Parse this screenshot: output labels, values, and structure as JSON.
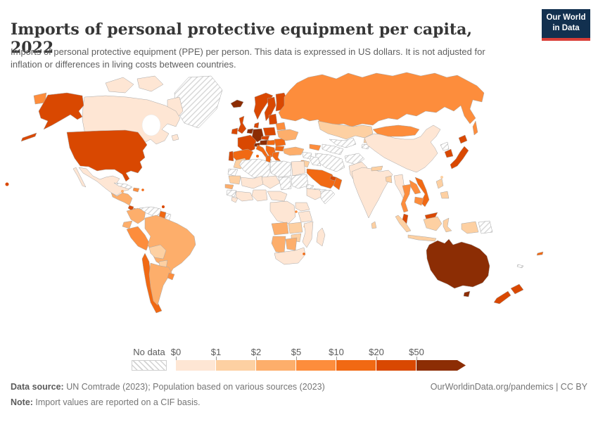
{
  "chart_data": {
    "type": "choropleth",
    "title": "Imports of personal protective equipment per capita, 2022",
    "subtitle": "Imports of personal protective equipment (PPE) per person. This data is expressed in US dollars. It is not adjusted for inflation or differences in living costs between countries.",
    "unit": "US dollars per person",
    "legend": {
      "no_data_label": "No data",
      "thresholds": [
        "$0",
        "$1",
        "$2",
        "$5",
        "$10",
        "$20",
        "$50"
      ],
      "ranges": [
        "$0-$1",
        "$1-$2",
        "$2-$5",
        "$5-$10",
        "$10-$20",
        "$20-$50",
        "$50+"
      ],
      "colors": [
        "#fee6d4",
        "#fdd0a2",
        "#fdae6b",
        "#fd8d3c",
        "#f16913",
        "#d94801",
        "#8c2d04"
      ],
      "no_data_pattern": "diagonal-hatch"
    },
    "countries": {
      "United States": "$20-$50",
      "Canada": "$0-$1",
      "Mexico": "$0-$1",
      "Guatemala": "$2-$5",
      "Honduras": "$2-$5",
      "Nicaragua": "$2-$5",
      "Costa Rica": "$20-$50",
      "Panama": "$5-$10",
      "Cuba": "No data",
      "Jamaica": "$2-$5",
      "Dominican Republic": "$5-$10",
      "Puerto Rico": "$10-$20",
      "Trinidad and Tobago": "$20-$50",
      "Colombia": "$2-$5",
      "Venezuela": "No data",
      "Guyana": "$10-$20",
      "Suriname": "No data",
      "Ecuador": "$2-$5",
      "Peru": "$5-$10",
      "Brazil": "$2-$5",
      "Bolivia": "$1-$2",
      "Paraguay": "$1-$2",
      "Chile": "$10-$20",
      "Argentina": "$2-$5",
      "Uruguay": "$5-$10",
      "Greenland": "No data",
      "Iceland": "$50+",
      "Ireland": "$20-$50",
      "United Kingdom": "$20-$50",
      "Norway": "$20-$50",
      "Sweden": "$20-$50",
      "Finland": "$20-$50",
      "Denmark": "$20-$50",
      "Netherlands": "$50+",
      "Germany": "$50+",
      "France": "$20-$50",
      "Switzerland": "$50+",
      "Austria": "$50+",
      "Czechia": "$20-$50",
      "Poland": "$20-$50",
      "Baltic states": "$20-$50",
      "Belarus": "$5-$10",
      "Ukraine": "$2-$5",
      "Hungary": "$10-$20",
      "Romania": "$10-$20",
      "Bulgaria": "$10-$20",
      "Balkans": "$10-$20",
      "Greece": "$10-$20",
      "Italy": "$10-$20",
      "Spain": "$10-$20",
      "Portugal": "$20-$50",
      "Turkey": "$2-$5",
      "Russia": "$5-$10",
      "Kazakhstan": "$1-$2",
      "Kyrgyzstan": "$1-$2",
      "Tajikistan": "No data",
      "Uzbekistan": "No data",
      "Turkmenistan": "No data",
      "Georgia": "$5-$10",
      "Mongolia": "$5-$10",
      "China": "$0-$1",
      "North Korea": "No data",
      "South Korea": "$20-$50",
      "Japan": "$20-$50",
      "Taiwan": "$1-$2",
      "India": "$0-$1",
      "Nepal": "$1-$2",
      "Bangladesh": "$1-$2",
      "Sri Lanka": "$1-$2",
      "Pakistan": "$0-$1",
      "Afghanistan": "No data",
      "Iran": "No data",
      "Iraq": "No data",
      "Syria": "No data",
      "Israel": "$5-$10",
      "Jordan": "$1-$2",
      "Saudi Arabia": "$10-$20",
      "Yemen": "No data",
      "Oman": "$10-$20",
      "United Arab Emirates": "$20-$50",
      "Myanmar": "$0-$1",
      "Thailand": "$5-$10",
      "Laos": "$5-$10",
      "Cambodia": "$5-$10",
      "Vietnam": "$10-$20",
      "Malaysia": "$20-$50",
      "Indonesia": "$1-$2",
      "Philippines": "$1-$2",
      "Papua New Guinea": "No data",
      "Australia": "$50+",
      "New Zealand": "$20-$50",
      "Fiji": "$10-$20",
      "New Caledonia": "No data",
      "Morocco": "$1-$2",
      "Western Sahara": "No data",
      "Mauritania": "$1-$2",
      "Senegal": "$2-$5",
      "Guinea": "No data",
      "Sierra Leone": "$0-$1",
      "Ivory Coast": "$0-$1",
      "Mali": "$0-$1",
      "Niger": "$0-$1",
      "Nigeria": "$0-$1",
      "Algeria": "No data",
      "Tunisia": "$10-$20",
      "Libya": "No data",
      "Egypt": "$0-$1",
      "Chad": "No data",
      "Sudan": "No data",
      "Eritrea": "No data",
      "Ethiopia": "$0-$1",
      "Somalia": "No data",
      "Cameroon": "$0-$1",
      "Democratic Republic of Congo": "$0-$1",
      "Kenya": "$0-$1",
      "Rwanda": "$5-$10",
      "Tanzania": "$0-$1",
      "Angola": "$2-$5",
      "Zambia": "$1-$2",
      "Malawi": "$1-$2",
      "Mozambique": "$0-$1",
      "Zimbabwe": "$1-$2",
      "Namibia": "$2-$5",
      "Botswana": "$2-$5",
      "South Africa": "$0-$1",
      "Eswatini": "$10-$20",
      "Madagascar": "$0-$1"
    }
  },
  "logo": {
    "line1": "Our World",
    "line2": "in Data",
    "bg_color": "#12304f",
    "accent_color": "#d93d37"
  },
  "footer": {
    "data_source_label": "Data source:",
    "data_source_text": " UN Comtrade (2023); Population based on various sources (2023)",
    "note_label": "Note:",
    "note_text": " Import values are reported on a CIF basis.",
    "link": "OurWorldinData.org/pandemics | CC BY"
  }
}
